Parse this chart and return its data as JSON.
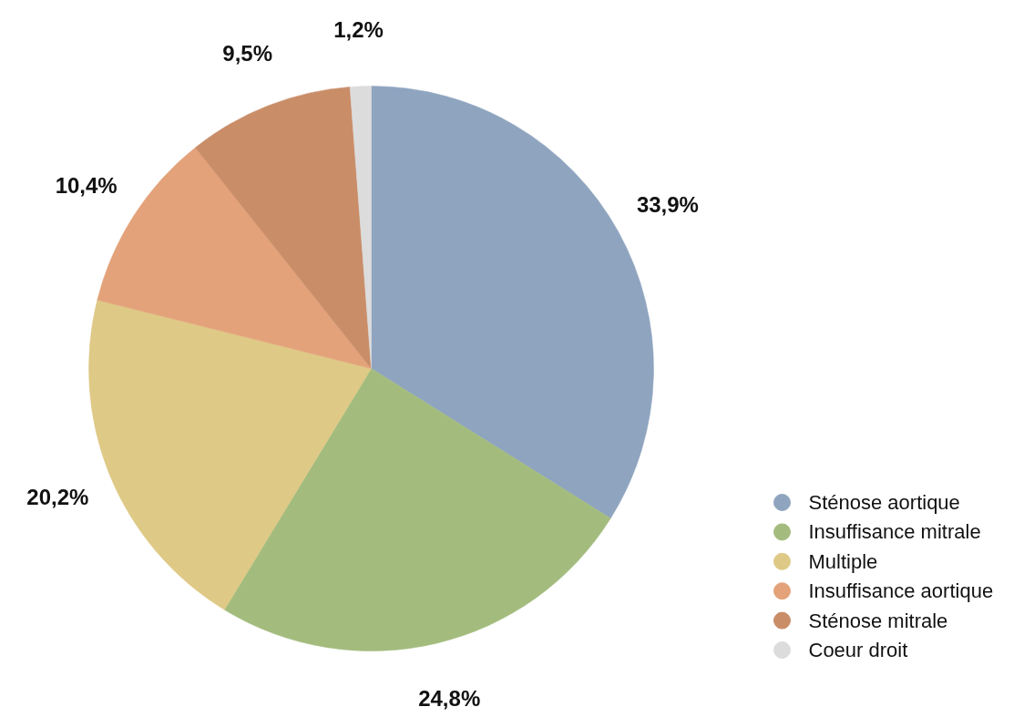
{
  "chart_data": {
    "type": "pie",
    "categories": [
      "Sténose aortique",
      "Insuffisance mitrale",
      "Multiple",
      "Insuffisance aortique",
      "Sténose mitrale",
      "Coeur droit"
    ],
    "values": [
      33.9,
      24.8,
      20.2,
      10.4,
      9.5,
      1.2
    ],
    "value_labels": [
      "33,9%",
      "24,8%",
      "20,2%",
      "10,4%",
      "9,5%",
      "1,2%"
    ],
    "colors": [
      "#8fa4bf",
      "#a3bc7e",
      "#dec986",
      "#e3a27a",
      "#c98d68",
      "#dcdcdc"
    ],
    "legend": "bottom right"
  }
}
